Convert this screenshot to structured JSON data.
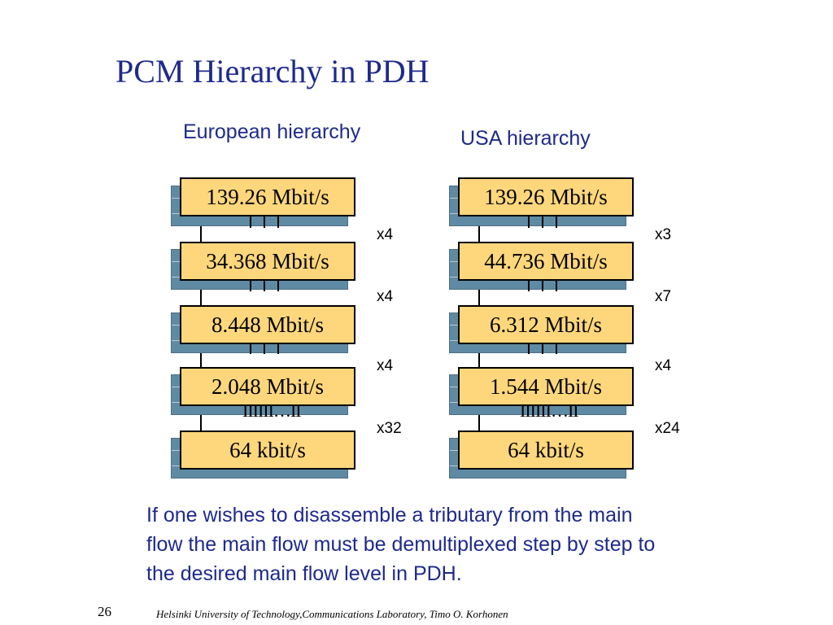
{
  "title": "PCM Hierarchy in PDH",
  "european": {
    "heading": "European hierarchy",
    "levels": [
      "139.26 Mbit/s",
      "34.368 Mbit/s",
      "8.448 Mbit/s",
      "2.048 Mbit/s",
      "64 kbit/s"
    ],
    "multipliers": [
      "x4",
      "x4",
      "x4",
      "x32"
    ]
  },
  "usa": {
    "heading": "USA hierarchy",
    "levels": [
      "139.26 Mbit/s",
      "44.736 Mbit/s",
      "6.312 Mbit/s",
      "1.544 Mbit/s",
      "64 kbit/s"
    ],
    "multipliers": [
      "x3",
      "x7",
      "x4",
      "x24"
    ]
  },
  "tributary_ticks": "IIIIII…II",
  "note_lines": [
    "If one wishes to disassemble a tributary from the main",
    "flow the main flow must be demultiplexed step by step to",
    "the desired main flow level in PDH."
  ],
  "page_number": "26",
  "footer": "Helsinki University of Technology,Communications Laboratory, Timo O. Korhonen",
  "colors": {
    "title": "#1e2a8c",
    "box_fill": "#fed77c",
    "box_shadow": "#5f8aa3"
  }
}
